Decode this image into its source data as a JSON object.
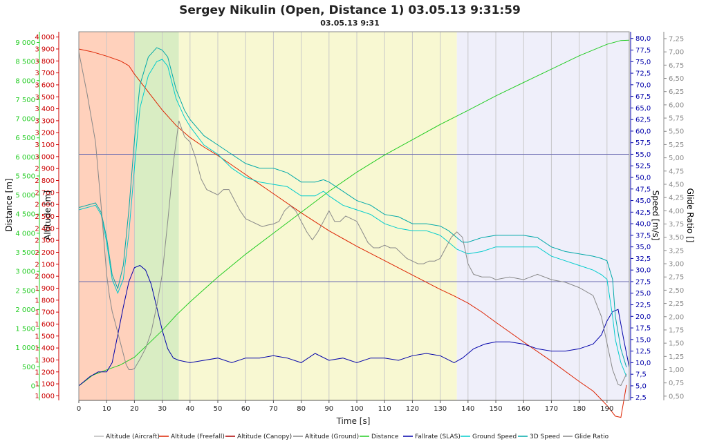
{
  "chart_data": {
    "type": "line",
    "title": "Sergey Nikulin (Open, Distance 1) 03.05.13 9:31:59",
    "subtitle": "03.05.13 9:31",
    "xlabel": "Time [s]",
    "xlim": [
      0,
      198
    ],
    "x_ticks": [
      0,
      10,
      20,
      30,
      40,
      50,
      60,
      70,
      80,
      90,
      100,
      110,
      120,
      130,
      140,
      150,
      160,
      170,
      180,
      190
    ],
    "axes": {
      "distance": {
        "label": "Distance [m]",
        "color": "#22cc22",
        "range": [
          -380,
          9280
        ],
        "ticks": [
          0,
          500,
          1000,
          1500,
          2000,
          2500,
          3000,
          3500,
          4000,
          4500,
          5000,
          5500,
          6000,
          6500,
          7000,
          7500,
          8000,
          8500,
          9000
        ],
        "tick_labels": [
          "0",
          "500",
          "1 000",
          "1 500",
          "2 000",
          "2 500",
          "3 000",
          "3 500",
          "4 000",
          "4 500",
          "5 000",
          "5 500",
          "6 000",
          "6 500",
          "7 000",
          "7 500",
          "8 000",
          "8 500",
          "9 000"
        ]
      },
      "altitude": {
        "label": "Altitude [m]",
        "color": "#cc0000",
        "range": [
          962,
          4044
        ],
        "ticks": [
          1000,
          1100,
          1200,
          1300,
          1400,
          1500,
          1600,
          1700,
          1800,
          1900,
          2000,
          2100,
          2200,
          2300,
          2400,
          2500,
          2600,
          2700,
          2800,
          2900,
          3000,
          3100,
          3200,
          3300,
          3400,
          3500,
          3600,
          3700,
          3800,
          3900,
          4000
        ],
        "tick_labels": [
          "1 000",
          "1 100",
          "1 200",
          "1 300",
          "1 400",
          "1 500",
          "1 600",
          "1 700",
          "1 800",
          "1 900",
          "2 000",
          "2 100",
          "2 200",
          "2 300",
          "2 400",
          "2 500",
          "2 600",
          "2 700",
          "2 800",
          "2 900",
          "3 000",
          "3 100",
          "3 200",
          "3 300",
          "3 400",
          "3 500",
          "3 600",
          "3 700",
          "3 800",
          "3 900",
          "4 000"
        ]
      },
      "speed": {
        "label": "Speed [m/s]",
        "color": "#0000aa",
        "range": [
          1.86,
          81.45
        ],
        "ticks": [
          2.5,
          5,
          7.5,
          10,
          12.5,
          15,
          17.5,
          20,
          22.5,
          25,
          27.5,
          30,
          32.5,
          35,
          37.5,
          40,
          42.5,
          45,
          47.5,
          50,
          52.5,
          55,
          57.5,
          60,
          62.5,
          65,
          67.5,
          70,
          72.5,
          75,
          77.5,
          80
        ],
        "tick_labels": [
          "2,5",
          "5,0",
          "7,5",
          "10,0",
          "12,5",
          "15,0",
          "17,5",
          "20,0",
          "22,5",
          "25,0",
          "27,5",
          "30,0",
          "32,5",
          "35,0",
          "37,5",
          "40,0",
          "42,5",
          "45,0",
          "47,5",
          "50,0",
          "52,5",
          "55,0",
          "57,5",
          "60,0",
          "62,5",
          "65,0",
          "67,5",
          "70,0",
          "72,5",
          "75,0",
          "77,5",
          "80,0"
        ]
      },
      "glide": {
        "label": "Glide Ratio []",
        "color": "#888888",
        "range": [
          0.42,
          7.38
        ],
        "ticks": [
          0.5,
          0.75,
          1,
          1.25,
          1.5,
          1.75,
          2,
          2.25,
          2.5,
          2.75,
          3,
          3.25,
          3.5,
          3.75,
          4,
          4.25,
          4.5,
          4.75,
          5,
          5.25,
          5.5,
          5.75,
          6,
          6.25,
          6.5,
          6.75,
          7,
          7.25
        ],
        "tick_labels": [
          "0,50",
          "0,75",
          "1,00",
          "1,25",
          "1,50",
          "1,75",
          "2,00",
          "2,25",
          "2,50",
          "2,75",
          "3,00",
          "3,25",
          "3,50",
          "3,75",
          "4,00",
          "4,25",
          "4,50",
          "4,75",
          "5,00",
          "5,25",
          "5,50",
          "5,75",
          "6,00",
          "6,25",
          "6,50",
          "6,75",
          "7,00",
          "7,25"
        ]
      }
    },
    "bands": [
      {
        "x0": 0,
        "x1": 20,
        "color": "#ffcfb8"
      },
      {
        "x0": 20,
        "x1": 36,
        "color": "#d7ecc0"
      },
      {
        "x0": 36,
        "x1": 136,
        "color": "#f8f8d0"
      },
      {
        "x0": 136,
        "x1": 198,
        "color": "#eeeefa"
      }
    ],
    "hlines_speed": [
      27.5,
      55.0
    ],
    "series": [
      {
        "name": "Altitude (Freefall)",
        "axis": "altitude",
        "color": "#dd2200",
        "x": [
          0,
          5,
          10,
          15,
          18,
          20,
          25,
          30,
          35,
          40,
          45,
          50,
          55,
          60,
          70,
          80,
          90,
          100,
          110,
          120,
          130,
          135,
          140,
          145,
          150,
          160,
          170,
          180,
          185,
          190,
          193,
          195,
          197
        ],
        "y": [
          3900,
          3875,
          3840,
          3800,
          3760,
          3690,
          3540,
          3390,
          3260,
          3160,
          3080,
          3010,
          2930,
          2850,
          2690,
          2530,
          2380,
          2250,
          2130,
          2010,
          1890,
          1835,
          1775,
          1700,
          1615,
          1450,
          1290,
          1120,
          1040,
          920,
          830,
          820,
          1090
        ]
      },
      {
        "name": "Distance",
        "axis": "distance",
        "color": "#22cc22",
        "x": [
          0,
          5,
          10,
          15,
          20,
          25,
          30,
          35,
          40,
          50,
          60,
          70,
          80,
          90,
          100,
          110,
          120,
          130,
          140,
          150,
          160,
          170,
          180,
          190,
          195,
          198
        ],
        "y": [
          0,
          280,
          420,
          550,
          750,
          1100,
          1450,
          1850,
          2200,
          2850,
          3450,
          4000,
          4550,
          5100,
          5600,
          6050,
          6450,
          6850,
          7220,
          7600,
          7950,
          8300,
          8650,
          8950,
          9050,
          9060
        ]
      },
      {
        "name": "Fallrate (SLAS)",
        "axis": "speed",
        "color": "#0000aa",
        "x": [
          0,
          4,
          7,
          10,
          12,
          14,
          16,
          18,
          20,
          22,
          24,
          26,
          28,
          30,
          32,
          34,
          36,
          40,
          45,
          50,
          55,
          60,
          65,
          70,
          75,
          80,
          85,
          90,
          95,
          100,
          105,
          110,
          115,
          120,
          125,
          130,
          135,
          138,
          142,
          146,
          150,
          155,
          160,
          165,
          170,
          175,
          180,
          185,
          188,
          190,
          192,
          194,
          196,
          198
        ],
        "y": [
          5,
          7,
          8,
          8,
          10,
          16,
          22,
          27.5,
          30.5,
          31,
          30,
          27,
          22,
          17,
          13,
          11,
          10.5,
          10,
          10.5,
          11,
          10,
          11,
          11,
          11.5,
          11,
          10,
          12,
          10.5,
          11,
          10,
          11,
          11,
          10.5,
          11.5,
          12,
          11.5,
          10,
          11,
          13,
          14,
          14.5,
          14.5,
          14,
          13,
          12.5,
          12.5,
          13,
          14,
          16,
          19,
          21,
          21.5,
          15,
          9
        ]
      },
      {
        "name": "Ground Speed",
        "axis": "speed",
        "color": "#00cccc",
        "x": [
          0,
          3,
          6,
          8,
          10,
          12,
          14,
          16,
          18,
          20,
          22,
          25,
          28,
          30,
          32,
          35,
          38,
          40,
          45,
          50,
          55,
          60,
          65,
          70,
          75,
          80,
          85,
          88,
          90,
          95,
          100,
          105,
          110,
          115,
          120,
          125,
          130,
          133,
          136,
          138,
          140,
          145,
          150,
          155,
          160,
          165,
          170,
          175,
          180,
          185,
          188,
          190,
          192,
          193,
          195,
          197
        ],
        "y": [
          43,
          43.5,
          44,
          42,
          36,
          28,
          25,
          28,
          38,
          52,
          65,
          72,
          75,
          75.5,
          74,
          67,
          63,
          61,
          57,
          55,
          52,
          50,
          49,
          48.5,
          48,
          46,
          46,
          47,
          46,
          44,
          43,
          42,
          40,
          39,
          38.5,
          38.5,
          37.5,
          36,
          34.5,
          34,
          33.5,
          34,
          35,
          35,
          35,
          35,
          33,
          32,
          31,
          30,
          29,
          28,
          20,
          15,
          10,
          7
        ]
      },
      {
        "name": "3D Speed",
        "axis": "speed",
        "color": "#00a8a8",
        "x": [
          0,
          3,
          6,
          8,
          10,
          12,
          14,
          16,
          18,
          20,
          22,
          25,
          28,
          30,
          32,
          35,
          38,
          40,
          45,
          50,
          55,
          60,
          65,
          70,
          75,
          80,
          85,
          88,
          90,
          95,
          100,
          105,
          110,
          115,
          120,
          125,
          130,
          133,
          136,
          138,
          140,
          145,
          150,
          155,
          160,
          165,
          170,
          175,
          180,
          185,
          188,
          190,
          192,
          193,
          195,
          197
        ],
        "y": [
          43.5,
          44,
          44.5,
          42.5,
          37,
          29,
          26,
          31,
          43,
          58,
          70,
          76,
          78,
          77.5,
          76,
          69,
          64.5,
          62.5,
          59,
          57,
          55,
          53,
          52,
          52,
          51,
          49,
          49,
          49.5,
          49,
          47,
          45,
          44,
          42,
          41.5,
          40,
          40,
          39.5,
          38.5,
          37,
          36,
          36,
          37,
          37.5,
          37.5,
          37.5,
          37,
          35,
          34,
          33.5,
          33,
          32.5,
          32,
          28,
          20,
          13,
          9
        ]
      },
      {
        "name": "Glide Ratio",
        "axis": "glide",
        "color": "#888888",
        "x": [
          0,
          3,
          6,
          8,
          10,
          11,
          12,
          13,
          14,
          15,
          16,
          17,
          18,
          19,
          20,
          22,
          24,
          26,
          28,
          30,
          32,
          34,
          36,
          38,
          40,
          42,
          44,
          46,
          48,
          50,
          52,
          54,
          56,
          58,
          60,
          62,
          64,
          66,
          68,
          70,
          72,
          74,
          76,
          78,
          80,
          82,
          84,
          86,
          88,
          90,
          92,
          94,
          96,
          98,
          100,
          102,
          104,
          106,
          108,
          110,
          112,
          114,
          116,
          118,
          120,
          122,
          124,
          126,
          128,
          130,
          132,
          134,
          136,
          138,
          140,
          142,
          145,
          148,
          150,
          155,
          160,
          165,
          170,
          175,
          180,
          185,
          188,
          190,
          192,
          194,
          195,
          197
        ],
        "y": [
          7.0,
          6.2,
          5.3,
          4.1,
          2.8,
          2.4,
          2.1,
          1.9,
          1.7,
          1.5,
          1.3,
          1.1,
          1.0,
          1.0,
          1.02,
          1.2,
          1.4,
          1.7,
          2.2,
          2.8,
          3.8,
          4.9,
          5.7,
          5.4,
          5.3,
          5.0,
          4.6,
          4.4,
          4.35,
          4.3,
          4.4,
          4.4,
          4.2,
          4.0,
          3.85,
          3.8,
          3.75,
          3.7,
          3.73,
          3.75,
          3.8,
          4.0,
          4.1,
          4.0,
          3.8,
          3.6,
          3.45,
          3.6,
          3.8,
          4.0,
          3.8,
          3.8,
          3.9,
          3.85,
          3.8,
          3.6,
          3.4,
          3.3,
          3.3,
          3.35,
          3.3,
          3.3,
          3.2,
          3.1,
          3.05,
          3.0,
          3.0,
          3.05,
          3.05,
          3.1,
          3.3,
          3.5,
          3.6,
          3.5,
          3.0,
          2.8,
          2.75,
          2.75,
          2.7,
          2.75,
          2.7,
          2.8,
          2.7,
          2.65,
          2.55,
          2.4,
          2.0,
          1.5,
          1.0,
          0.72,
          0.7,
          0.92
        ]
      }
    ],
    "legend": [
      {
        "label": "Altitude (Aircraft)",
        "color": "#bbbbbb"
      },
      {
        "label": "Altitude (Freefall)",
        "color": "#dd2200"
      },
      {
        "label": "Altitude (Canopy)",
        "color": "#aa0000"
      },
      {
        "label": "Altitude (Ground)",
        "color": "#888888"
      },
      {
        "label": "Distance",
        "color": "#22cc22"
      },
      {
        "label": "Fallrate (SLAS)",
        "color": "#0000aa"
      },
      {
        "label": "Ground Speed",
        "color": "#00cccc"
      },
      {
        "label": "3D Speed",
        "color": "#00a8a8"
      },
      {
        "label": "Glide Ratio",
        "color": "#888888"
      }
    ],
    "legend_position": "bottom",
    "grid": true
  }
}
